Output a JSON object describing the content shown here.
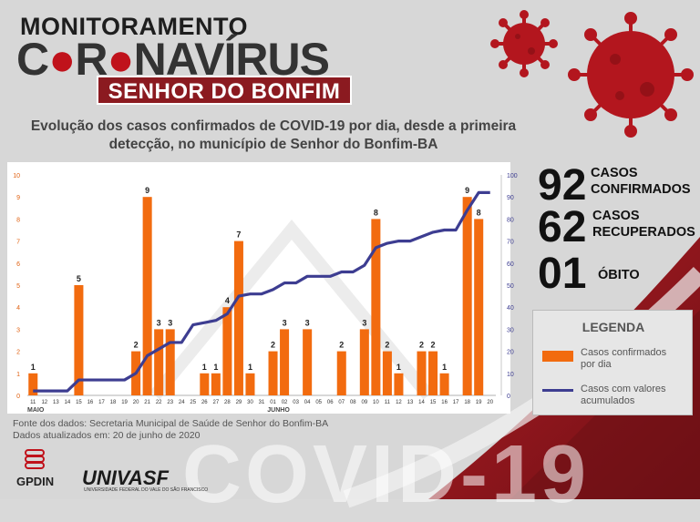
{
  "header": {
    "title_line1": "MONITORAMENTO",
    "title_line2_a": "C",
    "title_line2_b": "R",
    "title_line2_c": "NAVÍRUS",
    "city": "SENHOR DO BONFIM"
  },
  "stats": {
    "confirmed_num": "92",
    "confirmed_l1": "CASOS",
    "confirmed_l2": "CONFIRMADOS",
    "recovered_num": "62",
    "recovered_l1": "CASOS",
    "recovered_l2": "RECUPERADOS",
    "deaths_num": "01",
    "deaths_l1": "ÓBITO"
  },
  "legend": {
    "title": "LEGENDA",
    "bars_l1": "Casos confirmados",
    "bars_l2": "por dia",
    "line_l1": "Casos com valores",
    "line_l2": "acumulados"
  },
  "footer": {
    "source": "Fonte dos dados: Secretaria Municipal de Saúde de Senhor do Bonfim-BA",
    "updated": "Dados atualizados em: 20 de junho de 2020",
    "watermark": "COVID-19",
    "logo_left": "GPDIN",
    "logo_right": "UNIVASF",
    "logo_right_sub": "UNIVERSIDADE FEDERAL DO VALE DO SÃO FRANCISCO"
  },
  "colors": {
    "bar": "#f26b0f",
    "line": "#3d3d91",
    "dark_red": "#8b1a20",
    "accent_red": "#c0121b"
  },
  "chart_data": {
    "type": "bar+line",
    "title_l1": "Evolução dos casos confirmados de COVID-19 por dia, desde a primeira",
    "title_l2": "detecção, no município de Senhor do Bonfim-BA",
    "categories": [
      "11",
      "12",
      "13",
      "14",
      "15",
      "16",
      "17",
      "18",
      "19",
      "20",
      "21",
      "22",
      "23",
      "24",
      "25",
      "26",
      "27",
      "28",
      "29",
      "30",
      "31",
      "01",
      "02",
      "03",
      "04",
      "05",
      "06",
      "07",
      "08",
      "09",
      "10",
      "11",
      "12",
      "13",
      "14",
      "15",
      "16",
      "17",
      "18",
      "19",
      "20"
    ],
    "month_labels": [
      {
        "label": "MAIO",
        "index": 0
      },
      {
        "label": "JUNHO",
        "index": 21
      }
    ],
    "series": [
      {
        "axis": "left",
        "values": [
          1,
          0,
          0,
          0,
          5,
          0,
          0,
          0,
          0,
          2,
          9,
          3,
          3,
          0,
          0,
          1,
          1,
          4,
          7,
          1,
          0,
          2,
          3,
          0,
          3,
          0,
          0,
          2,
          0,
          3,
          8,
          2,
          1,
          0,
          2,
          2,
          1,
          0,
          9,
          8,
          0
        ]
      },
      {
        "axis": "right",
        "values": [
          2,
          2,
          2,
          2,
          7,
          7,
          7,
          7,
          7,
          10,
          18,
          21,
          24,
          24,
          32,
          33,
          34,
          37,
          45,
          46,
          46,
          48,
          51,
          51,
          54,
          54,
          54,
          56,
          56,
          59,
          67,
          69,
          70,
          70,
          72,
          74,
          75,
          75,
          84,
          92,
          92
        ]
      }
    ],
    "left_ylim": [
      0,
      10
    ],
    "left_ticks": [
      0,
      1,
      2,
      3,
      4,
      5,
      6,
      7,
      8,
      9,
      10
    ],
    "right_ylim": [
      0,
      100
    ],
    "right_ticks": [
      0,
      10,
      20,
      30,
      40,
      50,
      60,
      70,
      80,
      90,
      100
    ]
  }
}
